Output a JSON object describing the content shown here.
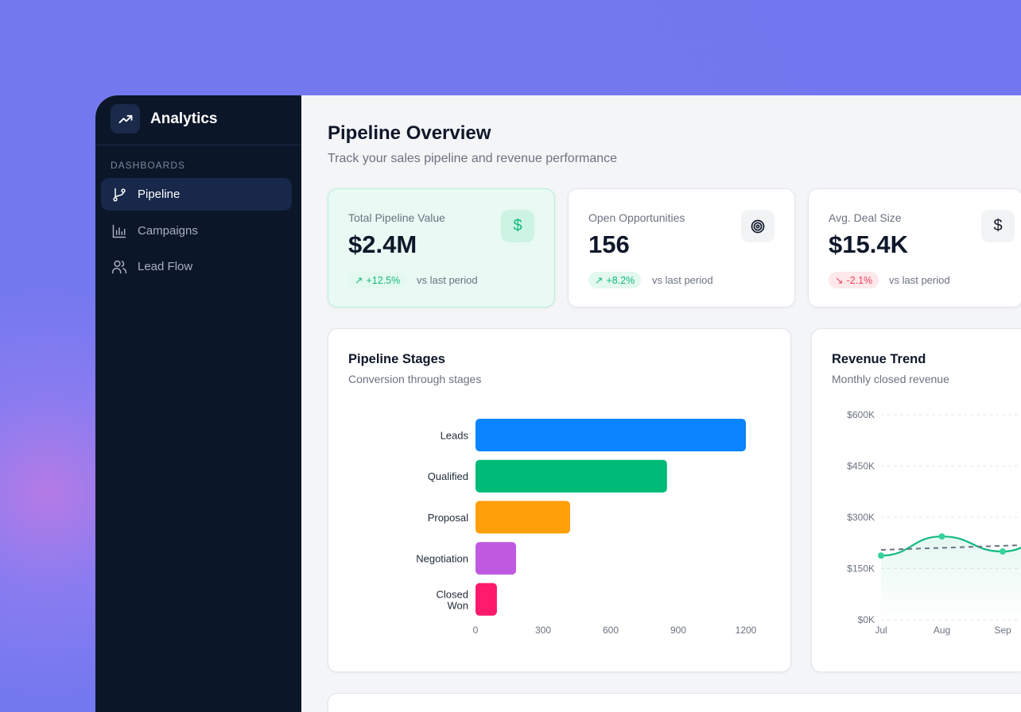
{
  "app": {
    "title": "Analytics",
    "logo_icon": "trending-up-icon"
  },
  "sidebar": {
    "section": "DASHBOARDS",
    "items": [
      {
        "label": "Pipeline",
        "icon": "git-branch-icon",
        "active": true
      },
      {
        "label": "Campaigns",
        "icon": "bar-chart-icon",
        "active": false
      },
      {
        "label": "Lead Flow",
        "icon": "users-icon",
        "active": false
      }
    ]
  },
  "header": {
    "title": "Pipeline Overview",
    "subtitle": "Track your sales pipeline and revenue performance"
  },
  "kpis": [
    {
      "label": "Total Pipeline Value",
      "value": "$2.4M",
      "change": "+12.5%",
      "trend": "up",
      "compare": "vs last period",
      "icon": "dollar-icon"
    },
    {
      "label": "Open Opportunities",
      "value": "156",
      "change": "+8.2%",
      "trend": "up",
      "compare": "vs last period",
      "icon": "target-icon"
    },
    {
      "label": "Avg. Deal Size",
      "value": "$15.4K",
      "change": "-2.1%",
      "trend": "down",
      "compare": "vs last period",
      "icon": "dollar-icon"
    }
  ],
  "colors": {
    "accent": "#10b981",
    "negative": "#f43f5e",
    "sidebar_bg": "#0c1629"
  },
  "chart_data": [
    {
      "type": "bar",
      "orientation": "horizontal",
      "title": "Pipeline Stages",
      "subtitle": "Conversion through stages",
      "categories": [
        "Leads",
        "Qualified",
        "Proposal",
        "Negotiation",
        "Closed Won"
      ],
      "values": [
        1200,
        850,
        420,
        180,
        95
      ],
      "colors": [
        "#0a84ff",
        "#00bb77",
        "#ff9f0a",
        "#bf5ae0",
        "#ff1a6b"
      ],
      "xlim": [
        0,
        1200
      ],
      "xticks": [
        "0",
        "300",
        "600",
        "900",
        "1200"
      ],
      "grid": false
    },
    {
      "type": "line",
      "title": "Revenue Trend",
      "subtitle": "Monthly closed revenue",
      "categories": [
        "Jul",
        "Aug",
        "Sep"
      ],
      "values": [
        188000,
        244000,
        200000
      ],
      "trendline": true,
      "area_fill": true,
      "ylim": [
        0,
        600000
      ],
      "yticks": [
        "$0K",
        "$150K",
        "$300K",
        "$450K",
        "$600K"
      ],
      "grid": true
    }
  ]
}
